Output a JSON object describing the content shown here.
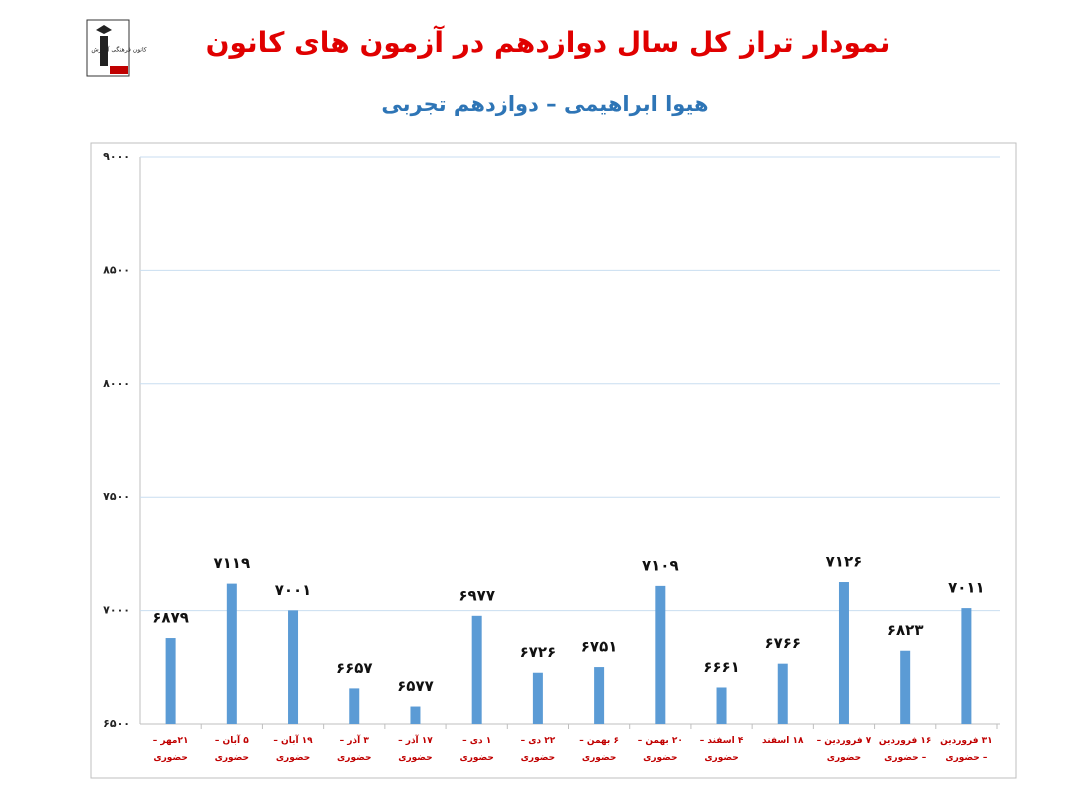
{
  "chart_data": {
    "type": "bar",
    "title": "نمودار تراز کل سال دوازدهم در آزمون های کانون",
    "subtitle": "هیوا ابراهیمی – دوازدهم تجربی",
    "logo_text": "کانون فرهنگی آموزش",
    "categories": [
      "۲۱مهر – حضوری",
      "۵ آبان – حضوری",
      "۱۹ آبان – حضوری",
      "۳ آذر – حضوری",
      "۱۷ آذر – حضوری",
      "۱ دی – حضوری",
      "۲۲ دی – حضوری",
      "۶ بهمن – حضوری",
      "۲۰ بهمن – حضوری",
      "۴ اسفند – حضوری",
      "۱۸ اسفند",
      "۷ فروردین – حضوری",
      "۱۶ فروردین – حضوری",
      "۳۱ فروردین – حضوری"
    ],
    "values": [
      6879,
      7119,
      7001,
      6657,
      6577,
      6977,
      6726,
      6751,
      7109,
      6661,
      6766,
      7126,
      6823,
      7011
    ],
    "value_labels": [
      "۶۸۷۹",
      "۷۱۱۹",
      "۷۰۰۱",
      "۶۶۵۷",
      "۶۵۷۷",
      "۶۹۷۷",
      "۶۷۲۶",
      "۶۷۵۱",
      "۷۱۰۹",
      "۶۶۶۱",
      "۶۷۶۶",
      "۷۱۲۶",
      "۶۸۲۳",
      "۷۰۱۱"
    ],
    "color": "#5b9bd5",
    "ylim": [
      6500,
      9000
    ],
    "yticks": [
      {
        "value": 6500,
        "label": "۶۵۰۰"
      },
      {
        "value": 7000,
        "label": "۷۰۰۰"
      },
      {
        "value": 7500,
        "label": "۷۵۰۰"
      },
      {
        "value": 8000,
        "label": "۸۰۰۰"
      },
      {
        "value": 8500,
        "label": "۸۵۰۰"
      },
      {
        "value": 9000,
        "label": "۹۰۰۰"
      }
    ],
    "grid": true
  }
}
